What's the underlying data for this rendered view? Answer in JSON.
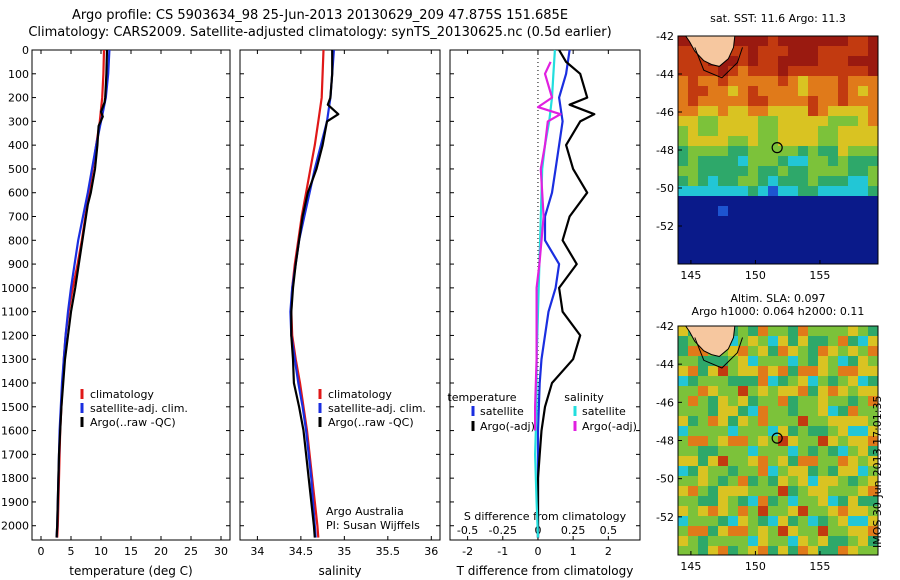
{
  "title": {
    "line1": "Argo profile: CS 5903634_98 25-Jun-2013 20130629_209 47.875S 151.685E",
    "line2": "Climatology: CARS2009. Satellite-adjusted climatology: synTS_20130625.nc (0.5d earlier)"
  },
  "colors": {
    "climatology": "#e01818",
    "satellite": "#1a2ee0",
    "argo": "#000000",
    "sat_salinity": "#22dede",
    "argo_salinity": "#e020e0"
  },
  "chart_data": [
    {
      "type": "line",
      "xlabel": "temperature (deg C)",
      "ylabel": "",
      "xlim": [
        -1.5,
        31.5
      ],
      "ylim": [
        2060,
        0
      ],
      "xticks": [
        "0",
        "5",
        "10",
        "15",
        "20",
        "25",
        "30"
      ],
      "yticks": [
        "0",
        "100",
        "200",
        "300",
        "400",
        "500",
        "600",
        "700",
        "800",
        "900",
        "1000",
        "1100",
        "1200",
        "1300",
        "1400",
        "1500",
        "1600",
        "1700",
        "1800",
        "1900",
        "2000"
      ],
      "legend": [
        "climatology",
        "satellite-adj. clim.",
        "Argo(..raw -QC)"
      ],
      "series": [
        {
          "name": "climatology",
          "color": "#e01818",
          "points": [
            [
              10.5,
              0
            ],
            [
              10.4,
              100
            ],
            [
              10.2,
              200
            ],
            [
              9.8,
              300
            ],
            [
              9.2,
              400
            ],
            [
              8.6,
              500
            ],
            [
              8.0,
              600
            ],
            [
              7.4,
              700
            ],
            [
              6.8,
              800
            ],
            [
              6.1,
              900
            ],
            [
              5.3,
              1000
            ],
            [
              4.6,
              1100
            ],
            [
              4.1,
              1200
            ],
            [
              3.8,
              1300
            ],
            [
              3.6,
              1400
            ],
            [
              3.4,
              1500
            ],
            [
              3.2,
              1600
            ],
            [
              3.1,
              1700
            ],
            [
              3.0,
              1800
            ],
            [
              2.9,
              1900
            ],
            [
              2.8,
              2000
            ],
            [
              2.7,
              2050
            ]
          ]
        },
        {
          "name": "satellite-adj. clim.",
          "color": "#1a2ee0",
          "points": [
            [
              11.4,
              0
            ],
            [
              11.2,
              100
            ],
            [
              10.8,
              200
            ],
            [
              10.0,
              300
            ],
            [
              9.2,
              400
            ],
            [
              8.5,
              500
            ],
            [
              7.8,
              600
            ],
            [
              7.0,
              700
            ],
            [
              6.2,
              800
            ],
            [
              5.6,
              900
            ],
            [
              5.0,
              1000
            ],
            [
              4.5,
              1100
            ],
            [
              4.1,
              1200
            ],
            [
              3.8,
              1300
            ],
            [
              3.5,
              1400
            ],
            [
              3.3,
              1500
            ],
            [
              3.1,
              1600
            ],
            [
              3.0,
              1700
            ],
            [
              2.9,
              1800
            ],
            [
              2.8,
              1900
            ],
            [
              2.7,
              2000
            ],
            [
              2.6,
              2050
            ]
          ]
        },
        {
          "name": "Argo(..raw -QC)",
          "color": "#000000",
          "points": [
            [
              11.0,
              0
            ],
            [
              10.9,
              100
            ],
            [
              10.7,
              200
            ],
            [
              10.6,
              220
            ],
            [
              10.0,
              260
            ],
            [
              10.3,
              280
            ],
            [
              9.6,
              320
            ],
            [
              9.4,
              400
            ],
            [
              9.0,
              500
            ],
            [
              8.3,
              600
            ],
            [
              7.8,
              650
            ],
            [
              7.5,
              700
            ],
            [
              6.9,
              800
            ],
            [
              6.3,
              900
            ],
            [
              5.7,
              1000
            ],
            [
              5.0,
              1100
            ],
            [
              4.5,
              1200
            ],
            [
              4.0,
              1300
            ],
            [
              3.7,
              1400
            ],
            [
              3.4,
              1500
            ],
            [
              3.2,
              1600
            ],
            [
              3.0,
              1700
            ],
            [
              2.9,
              1800
            ],
            [
              2.8,
              1900
            ],
            [
              2.7,
              2000
            ],
            [
              2.6,
              2050
            ]
          ]
        }
      ]
    },
    {
      "type": "line",
      "xlabel": "salinity",
      "ylabel": "",
      "xlim": [
        33.8,
        36.1
      ],
      "ylim": [
        2060,
        0
      ],
      "xticks": [
        "34",
        "34.5",
        "35",
        "35.5",
        "36"
      ],
      "legend": [
        "climatology",
        "satellite-adj. clim.",
        "Argo(..raw -QC)"
      ],
      "annotation": [
        "Argo Australia",
        "PI: Susan Wijffels"
      ],
      "series": [
        {
          "name": "climatology",
          "color": "#e01818",
          "points": [
            [
              34.76,
              0
            ],
            [
              34.75,
              100
            ],
            [
              34.74,
              200
            ],
            [
              34.7,
              300
            ],
            [
              34.66,
              400
            ],
            [
              34.61,
              500
            ],
            [
              34.56,
              600
            ],
            [
              34.51,
              700
            ],
            [
              34.47,
              800
            ],
            [
              34.43,
              900
            ],
            [
              34.4,
              1000
            ],
            [
              34.39,
              1100
            ],
            [
              34.4,
              1200
            ],
            [
              34.44,
              1300
            ],
            [
              34.49,
              1400
            ],
            [
              34.53,
              1500
            ],
            [
              34.57,
              1600
            ],
            [
              34.6,
              1700
            ],
            [
              34.63,
              1800
            ],
            [
              34.66,
              1900
            ],
            [
              34.69,
              2000
            ],
            [
              34.7,
              2050
            ]
          ]
        },
        {
          "name": "satellite-adj. clim.",
          "color": "#1a2ee0",
          "points": [
            [
              34.88,
              0
            ],
            [
              34.86,
              100
            ],
            [
              34.84,
              200
            ],
            [
              34.8,
              300
            ],
            [
              34.73,
              400
            ],
            [
              34.66,
              500
            ],
            [
              34.6,
              600
            ],
            [
              34.54,
              700
            ],
            [
              34.48,
              800
            ],
            [
              34.44,
              900
            ],
            [
              34.4,
              1000
            ],
            [
              34.38,
              1100
            ],
            [
              34.39,
              1200
            ],
            [
              34.43,
              1300
            ],
            [
              34.47,
              1400
            ],
            [
              34.52,
              1500
            ],
            [
              34.56,
              1600
            ],
            [
              34.59,
              1700
            ],
            [
              34.62,
              1800
            ],
            [
              34.64,
              1900
            ],
            [
              34.66,
              2000
            ],
            [
              34.67,
              2050
            ]
          ]
        },
        {
          "name": "Argo(..raw -QC)",
          "color": "#000000",
          "points": [
            [
              34.86,
              0
            ],
            [
              34.86,
              100
            ],
            [
              34.84,
              200
            ],
            [
              34.81,
              230
            ],
            [
              34.93,
              270
            ],
            [
              34.8,
              300
            ],
            [
              34.75,
              400
            ],
            [
              34.68,
              500
            ],
            [
              34.63,
              550
            ],
            [
              34.58,
              600
            ],
            [
              34.55,
              650
            ],
            [
              34.52,
              700
            ],
            [
              34.48,
              800
            ],
            [
              34.44,
              900
            ],
            [
              34.41,
              1000
            ],
            [
              34.39,
              1100
            ],
            [
              34.39,
              1200
            ],
            [
              34.41,
              1300
            ],
            [
              34.42,
              1400
            ],
            [
              34.48,
              1500
            ],
            [
              34.53,
              1600
            ],
            [
              34.56,
              1700
            ],
            [
              34.59,
              1800
            ],
            [
              34.62,
              1900
            ],
            [
              34.65,
              2000
            ],
            [
              34.66,
              2050
            ]
          ]
        }
      ]
    },
    {
      "type": "line",
      "xlabel": "T difference from climatology",
      "x2label": "S difference from climatology",
      "xlim": [
        -2.5,
        2.9
      ],
      "x2lim": [
        -0.625,
        0.725
      ],
      "ylim": [
        2060,
        0
      ],
      "xticks": [
        "-2",
        "-1",
        "0",
        "1",
        "2"
      ],
      "x2ticks": [
        "-0.5",
        "-0.25",
        "0",
        "0.25",
        "0.5"
      ],
      "legend_groups": [
        {
          "heading": "temperature",
          "items": [
            "satellite",
            "Argo(-adj)"
          ]
        },
        {
          "heading": "salinity",
          "items": [
            "satellite",
            "Argo(-adj)"
          ]
        }
      ],
      "series": [
        {
          "name": "satellite",
          "group": "temperature",
          "color": "#1a2ee0",
          "axis": "x",
          "points": [
            [
              0.9,
              0
            ],
            [
              0.8,
              100
            ],
            [
              0.6,
              200
            ],
            [
              0.7,
              300
            ],
            [
              0.6,
              400
            ],
            [
              0.5,
              500
            ],
            [
              0.4,
              600
            ],
            [
              0.2,
              700
            ],
            [
              0.2,
              800
            ],
            [
              0.6,
              900
            ],
            [
              0.5,
              1000
            ],
            [
              0.3,
              1100
            ],
            [
              0.2,
              1200
            ],
            [
              0.1,
              1300
            ],
            [
              0.05,
              1400
            ],
            [
              0.0,
              1600
            ],
            [
              0.0,
              1800
            ],
            [
              0.0,
              2050
            ]
          ]
        },
        {
          "name": "Argo(-adj)",
          "group": "temperature",
          "color": "#000000",
          "axis": "x",
          "points": [
            [
              0.6,
              0
            ],
            [
              0.8,
              50
            ],
            [
              1.2,
              100
            ],
            [
              1.4,
              200
            ],
            [
              0.9,
              230
            ],
            [
              1.6,
              270
            ],
            [
              1.2,
              300
            ],
            [
              0.8,
              400
            ],
            [
              1.0,
              500
            ],
            [
              1.4,
              600
            ],
            [
              0.9,
              700
            ],
            [
              0.7,
              800
            ],
            [
              1.1,
              900
            ],
            [
              0.6,
              1000
            ],
            [
              0.7,
              1100
            ],
            [
              1.2,
              1200
            ],
            [
              1.0,
              1300
            ],
            [
              0.4,
              1400
            ],
            [
              0.2,
              1500
            ],
            [
              0.1,
              1600
            ],
            [
              0.05,
              1700
            ],
            [
              0.0,
              1800
            ],
            [
              0.0,
              2050
            ]
          ]
        },
        {
          "name": "satellite",
          "group": "salinity",
          "color": "#22dede",
          "axis": "x2",
          "points": [
            [
              0.12,
              0
            ],
            [
              0.11,
              100
            ],
            [
              0.1,
              200
            ],
            [
              0.08,
              300
            ],
            [
              0.05,
              400
            ],
            [
              0.03,
              500
            ],
            [
              0.02,
              700
            ],
            [
              0.01,
              900
            ],
            [
              0.0,
              1100
            ],
            [
              -0.01,
              1300
            ],
            [
              -0.01,
              1500
            ],
            [
              -0.02,
              1700
            ],
            [
              -0.01,
              1900
            ],
            [
              0.0,
              2050
            ]
          ]
        },
        {
          "name": "Argo(-adj)",
          "group": "salinity",
          "color": "#e020e0",
          "axis": "x2",
          "points": [
            [
              0.09,
              50
            ],
            [
              0.05,
              100
            ],
            [
              0.1,
              200
            ],
            [
              0.0,
              240
            ],
            [
              0.16,
              270
            ],
            [
              0.07,
              300
            ],
            [
              0.05,
              400
            ],
            [
              0.02,
              500
            ],
            [
              0.04,
              700
            ],
            [
              0.01,
              900
            ],
            [
              -0.01,
              1000
            ],
            [
              -0.01,
              1300
            ],
            [
              -0.02,
              1500
            ],
            [
              -0.02,
              1600
            ]
          ]
        }
      ]
    },
    {
      "type": "heatmap",
      "title": "sat. SST: 11.6 Argo: 11.3",
      "xlim": [
        144,
        159.5
      ],
      "ylim": [
        -54,
        -42
      ],
      "xticks": [
        "145",
        "150",
        "155"
      ],
      "yticks": [
        "-42",
        "-44",
        "-46",
        "-48",
        "-50",
        "-52"
      ],
      "marker": {
        "lon": 151.685,
        "lat": -47.875
      },
      "colors": [
        "#0a1a8a",
        "#1d55d0",
        "#22c6d6",
        "#2ea86a",
        "#7cc23a",
        "#d9c322",
        "#e07a1a",
        "#c23a10",
        "#9a1a10"
      ]
    },
    {
      "type": "heatmap",
      "title_lines": [
        "Altim. SLA: 0.097",
        "Argo h1000: 0.064 h2000: 0.11"
      ],
      "xlim": [
        144,
        159.5
      ],
      "ylim": [
        -54,
        -42
      ],
      "xticks": [
        "145",
        "150",
        "155"
      ],
      "yticks": [
        "-42",
        "-44",
        "-46",
        "-48",
        "-50",
        "-52"
      ],
      "marker": {
        "lon": 151.685,
        "lat": -47.875
      },
      "colors": [
        "#22c6d6",
        "#2ea86a",
        "#7cc23a",
        "#d9c322",
        "#e07a1a",
        "#c23a10"
      ]
    }
  ],
  "stamp": "IMOS 30-Jun-2013 17:01:35"
}
